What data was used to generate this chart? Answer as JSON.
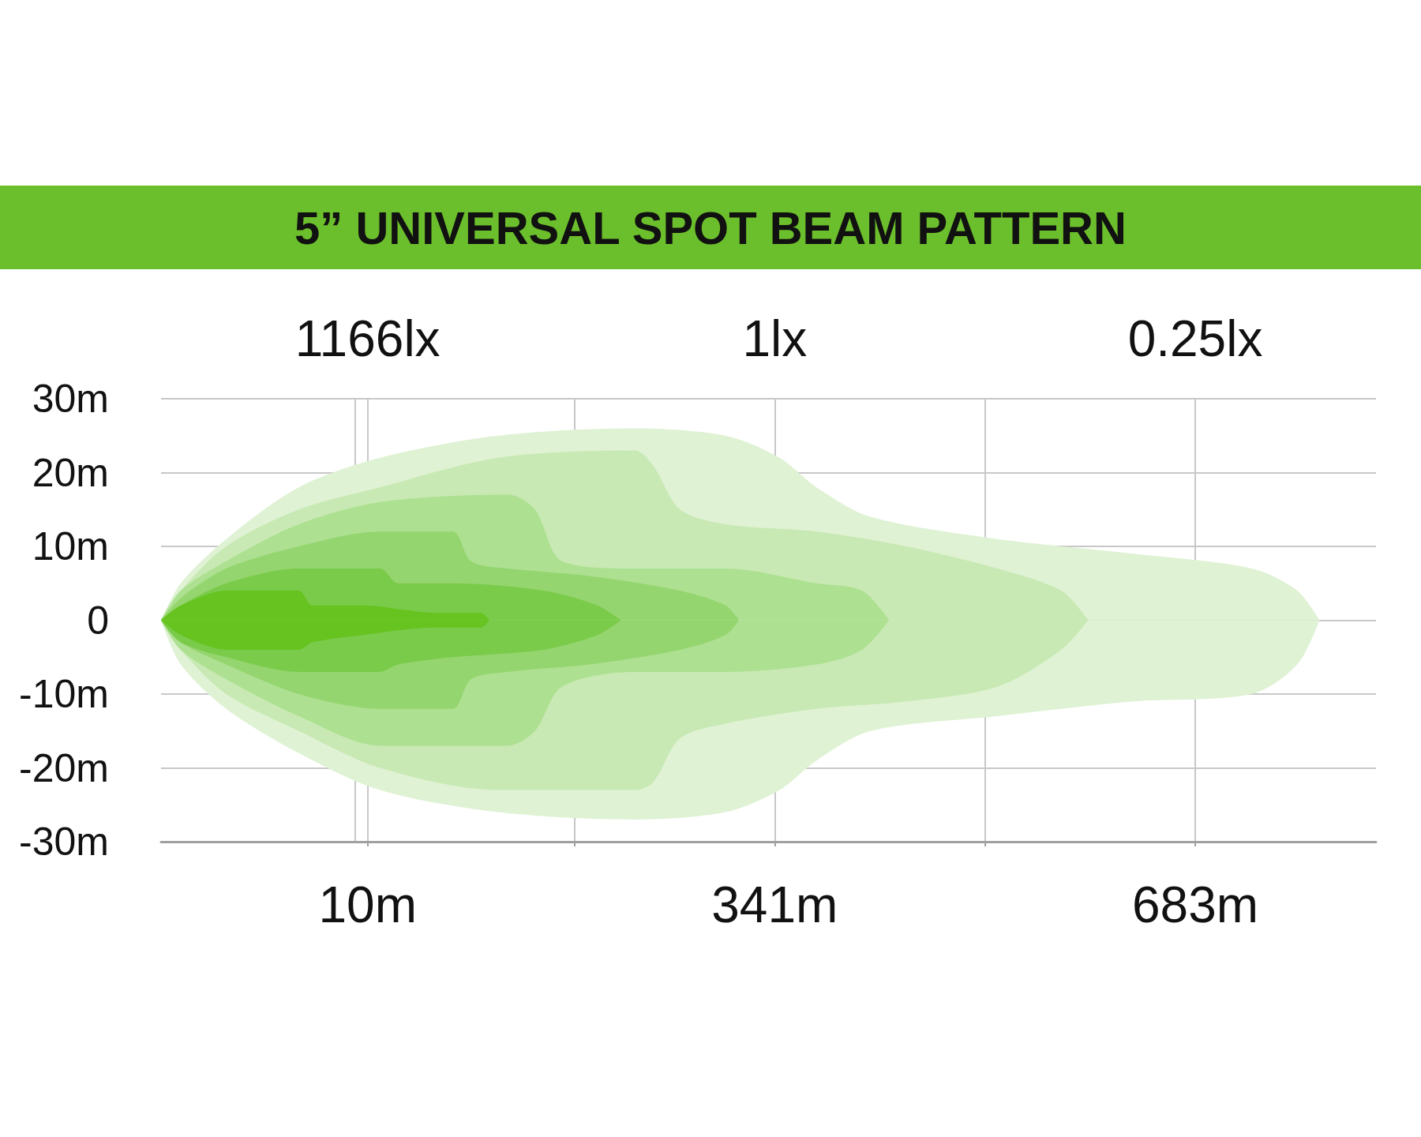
{
  "chart_data": {
    "type": "area",
    "title": "5” UNIVERSAL SPOT BEAM PATTERN",
    "xlim": [
      -158,
      830
    ],
    "xticks": [
      {
        "value": 10,
        "label": "10m"
      },
      {
        "value": 178,
        "label": null
      },
      {
        "value": 341,
        "label": "341m"
      },
      {
        "value": 512,
        "label": null
      },
      {
        "value": 683,
        "label": "683m"
      }
    ],
    "annotations": [
      "1166lx",
      "1lx",
      "0.25lx"
    ],
    "ylim": [
      -30,
      30
    ],
    "yticks": [
      {
        "value": -30,
        "label": "-30m"
      },
      {
        "value": -20,
        "label": "-20m"
      },
      {
        "value": -10,
        "label": "-10m"
      },
      0,
      {
        "value": 10,
        "label": "10m"
      },
      {
        "value": 20,
        "label": "20m"
      },
      {
        "value": 30,
        "label": "30m"
      }
    ],
    "grid": true,
    "series": [
      {
        "color": "#dff2d4",
        "x": [
          -158,
          -142,
          -105,
          -46,
          20,
          116,
          227,
          301,
          345,
          375,
          419,
          522,
          633,
          729,
          766,
          784
        ],
        "values": [
          0,
          5,
          11,
          18,
          22,
          25,
          26,
          25,
          22,
          18,
          14,
          11,
          9,
          7,
          4,
          0
        ]
      },
      {
        "color": "#dff2d4",
        "x": [
          -158,
          -142,
          -105,
          -46,
          20,
          116,
          227,
          301,
          345,
          375,
          419,
          522,
          633,
          729,
          766,
          784
        ],
        "values": [
          0,
          -6,
          -12,
          -18,
          -23,
          -26,
          -27,
          -26,
          -23,
          -19,
          -15,
          -13,
          -11,
          -10,
          -6,
          0
        ]
      },
      {
        "color": "#c8e9b3",
        "x": [
          -158,
          -142,
          -105,
          -46,
          20,
          116,
          227,
          242,
          264,
          301,
          375,
          448,
          522,
          574,
          596
        ],
        "values": [
          0,
          4,
          10,
          15,
          18,
          22,
          23,
          21,
          15,
          13,
          12,
          10,
          7,
          4,
          0
        ]
      },
      {
        "color": "#c8e9b3",
        "x": [
          -158,
          -142,
          -105,
          -46,
          20,
          116,
          227,
          242,
          264,
          301,
          375,
          448,
          522,
          574,
          596
        ],
        "values": [
          0,
          -4,
          -10,
          -15,
          -20,
          -23,
          -23,
          -22,
          -16,
          -14,
          -12,
          -11,
          -9,
          -4,
          0
        ]
      },
      {
        "color": "#ade091",
        "x": [
          -158,
          -142,
          -105,
          -46,
          20,
          124,
          146,
          168,
          227,
          301,
          375,
          412,
          434
        ],
        "values": [
          0,
          4,
          8,
          13,
          16,
          17,
          15,
          8,
          7,
          7,
          5,
          4,
          0
        ]
      },
      {
        "color": "#ade091",
        "x": [
          -158,
          -142,
          -105,
          -46,
          20,
          124,
          146,
          168,
          227,
          301,
          375,
          412,
          434
        ],
        "values": [
          0,
          -4,
          -8,
          -13,
          -17,
          -17,
          -15,
          -9,
          -7,
          -7,
          -6,
          -4,
          0
        ]
      },
      {
        "color": "#95d56f",
        "x": [
          -158,
          -142,
          -105,
          -46,
          20,
          79,
          94,
          124,
          190,
          264,
          301,
          312
        ],
        "values": [
          0,
          3,
          7,
          10,
          12,
          12,
          8,
          7,
          6,
          4,
          2,
          0
        ]
      },
      {
        "color": "#95d56f",
        "x": [
          -158,
          -142,
          -105,
          -46,
          20,
          79,
          94,
          124,
          190,
          264,
          301,
          312
        ],
        "values": [
          0,
          -3,
          -6,
          -10,
          -12,
          -12,
          -8,
          -7,
          -6,
          -4,
          -2,
          0
        ]
      },
      {
        "color": "#7bcb4b",
        "x": [
          -158,
          -142,
          -105,
          -46,
          20,
          35,
          79,
          153,
          197,
          216
        ],
        "values": [
          0,
          2,
          5,
          7,
          7,
          5,
          5,
          4,
          2,
          0
        ]
      },
      {
        "color": "#7bcb4b",
        "x": [
          -158,
          -142,
          -105,
          -46,
          20,
          35,
          79,
          153,
          197,
          216
        ],
        "values": [
          0,
          -3,
          -5,
          -7,
          -7,
          -6,
          -5,
          -4,
          -2,
          0
        ]
      },
      {
        "color": "#66c320",
        "x": [
          -158,
          -142,
          -105,
          -46,
          -35,
          6,
          65,
          102,
          109
        ],
        "values": [
          0,
          2,
          4,
          4,
          2,
          2,
          1,
          1,
          0
        ]
      },
      {
        "color": "#66c320",
        "x": [
          -158,
          -142,
          -105,
          -46,
          -35,
          6,
          65,
          102,
          109
        ],
        "values": [
          0,
          -2,
          -4,
          -4,
          -3,
          -2,
          -1,
          -1,
          0
        ]
      }
    ]
  }
}
